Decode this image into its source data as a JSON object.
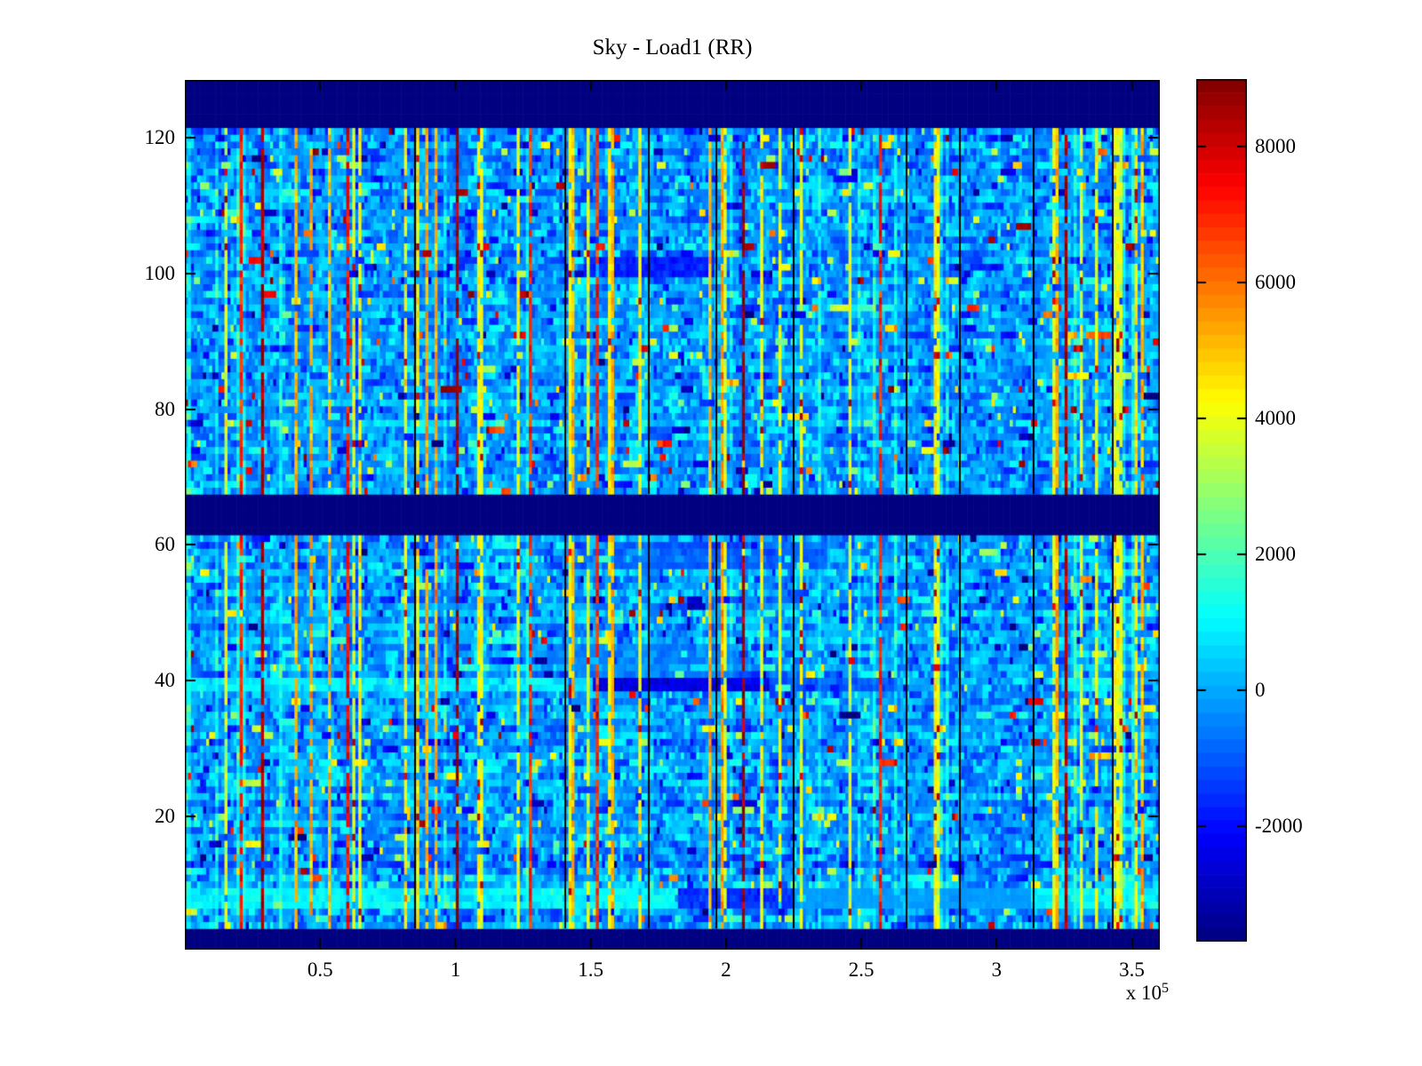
{
  "figure": {
    "title": "Sky - Load1 (RR)",
    "x_scale_prefix": "x 10",
    "x_scale_exponent": "5"
  },
  "chart_data": {
    "type": "heatmap",
    "title": "Sky - Load1 (RR)",
    "xlabel": "",
    "ylabel": "",
    "x_range": [
      0,
      360000
    ],
    "x_tick_values": [
      50000,
      100000,
      150000,
      200000,
      250000,
      300000,
      350000
    ],
    "x_tick_labels": [
      "0.5",
      "1",
      "1.5",
      "2",
      "2.5",
      "3",
      "3.5"
    ],
    "x_axis_multiplier_text": "x 10^5",
    "y_range": [
      0.5,
      128.5
    ],
    "y_tick_values": [
      20,
      40,
      60,
      80,
      100,
      120
    ],
    "y_tick_labels": [
      "20",
      "40",
      "60",
      "80",
      "100",
      "120"
    ],
    "grid_on": false,
    "legend": "none",
    "colormap": "jet",
    "color_limits": [
      -3700,
      9000
    ],
    "colorbar_position": "right",
    "colorbar_tick_values": [
      8000,
      6000,
      4000,
      2000,
      0,
      -2000
    ],
    "colorbar_tick_labels": [
      "8000",
      "6000",
      "4000",
      "2000",
      "0",
      "-2000"
    ],
    "colorbar_bands": 64,
    "grid_rows": 128,
    "grid_cols": 320,
    "solid_low_bands_rows": [
      [
        1,
        3
      ],
      [
        62,
        67
      ],
      [
        122,
        128
      ]
    ],
    "noise": {
      "seed": 1337,
      "mean": -150,
      "std": 680,
      "row_offset_std": 200,
      "col_offset_std": 260,
      "run_continue_p": 0.45,
      "outlier_bright_p": 0.012,
      "outlier_hot_p": 0.005,
      "outlier_dark_p": 0.015
    },
    "stripe_columns": {
      "yellow_p": 0.085,
      "orange_p": 0.035,
      "red_p": 0.02,
      "darkred_p": 0.013,
      "cyan_p": 0.035,
      "yellow_value": 4000,
      "orange_value": 5300,
      "red_value": 7200,
      "darkred_value": 8600,
      "cyan_boost": 1100,
      "cell_keep_p": 0.88,
      "yellow_hot_p": 0.05
    },
    "black_line_xfracs": [
      0.235,
      0.39,
      0.475,
      0.545,
      0.624,
      0.74,
      0.795,
      0.87,
      0.952
    ],
    "row_features": [
      {
        "rows": [
          7,
          9
        ],
        "xfrac": [
          0,
          1
        ],
        "mode": "brighten",
        "value": 1000
      },
      {
        "rows": [
          7,
          9
        ],
        "xfrac": [
          0.505,
          0.625
        ],
        "mode": "set",
        "value": -1500
      },
      {
        "rows": [
          7,
          9
        ],
        "xfrac": [
          0.625,
          0.87
        ],
        "mode": "darken",
        "value": -500
      },
      {
        "rows": [
          39,
          40
        ],
        "xfrac": [
          0,
          0.42
        ],
        "mode": "brighten",
        "value": 900
      },
      {
        "rows": [
          39,
          40
        ],
        "xfrac": [
          0.42,
          0.6
        ],
        "mode": "set",
        "value": -2400
      },
      {
        "rows": [
          39,
          40
        ],
        "xfrac": [
          0.6,
          0.73
        ],
        "mode": "darken",
        "value": -1000
      },
      {
        "rows": [
          39,
          40
        ],
        "xfrac": [
          0.9,
          0.965
        ],
        "mode": "brighten",
        "value": 1000
      },
      {
        "rows": [
          41,
          45
        ],
        "xfrac": [
          0.38,
          0.57
        ],
        "mode": "darken",
        "value": -350
      },
      {
        "rows": [
          57,
          60
        ],
        "xfrac": [
          0.44,
          0.66
        ],
        "mode": "darken",
        "value": -800
      },
      {
        "rows": [
          100,
          102
        ],
        "xfrac": [
          0.41,
          0.545
        ],
        "mode": "set",
        "value": -1700
      }
    ]
  }
}
